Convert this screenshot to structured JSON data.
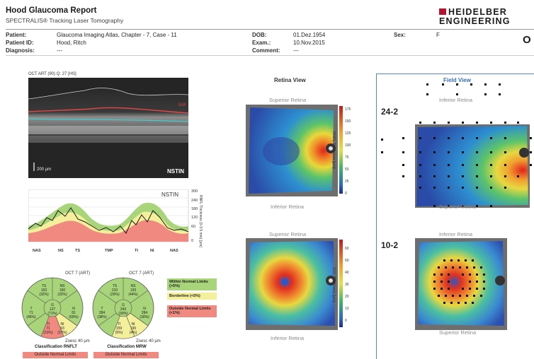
{
  "header": {
    "title": "Hood Glaucoma Report",
    "subtitle": "SPECTRALIS® Tracking Laser Tomography",
    "brand_line1": "HEIDELBER",
    "brand_line2": "ENGINEERING",
    "eye": "O"
  },
  "patient": {
    "patient_label": "Patient:",
    "patient_value": "Glaucoma Imaging Atlas, Chapter - 7, Case - 11",
    "id_label": "Patient ID:",
    "id_value": "Hood, Ritch",
    "diag_label": "Diagnosis:",
    "diag_value": "---",
    "dob_label": "DOB:",
    "dob_value": "01.Dez.1954",
    "exam_label": "Exam.:",
    "exam_value": "10.Nov.2015",
    "comment_label": "Comment:",
    "comment_value": "---",
    "sex_label": "Sex:",
    "sex_value": "F"
  },
  "oct": {
    "tag": "OCT ART (90) Q: 27 [HS]",
    "scale": "200 µm",
    "mode": "NSTIN",
    "red_mark": "ILM"
  },
  "rnfl_plot": {
    "mode": "NSTIN",
    "ylabel": "RNFL Thickness (0-3.5 mm) [µm]",
    "yticks": [
      "300",
      "240",
      "180",
      "120",
      "60",
      "0"
    ],
    "xticks": [
      "NAS",
      "NS",
      "TS",
      "TMP",
      "TI",
      "NI",
      "NAS"
    ]
  },
  "sectors": {
    "left_title": "OCT 7 (ART)",
    "right_title": "OCT 7 (ART)",
    "left": [
      {
        "id": "T",
        "value": "71",
        "pct": "(46%)"
      },
      {
        "id": "TS",
        "value": "163",
        "pct": "(32%)"
      },
      {
        "id": "NS",
        "value": "160",
        "pct": "(32%)"
      },
      {
        "id": "N",
        "value": "81",
        "pct": "(69%)"
      },
      {
        "id": "G",
        "value": "127",
        "pct": "(71%)"
      },
      {
        "id": "TI",
        "value": "71",
        "pct": "(13%)"
      },
      {
        "id": "NI",
        "value": "93",
        "pct": "(27%)"
      }
    ],
    "right": [
      {
        "id": "T",
        "value": "284",
        "pct": "(38%)"
      },
      {
        "id": "TS",
        "value": "210",
        "pct": "(29%)"
      },
      {
        "id": "NS",
        "value": "193",
        "pct": "(44%)"
      },
      {
        "id": "N",
        "value": "284",
        "pct": "(30%)"
      },
      {
        "id": "G",
        "value": "243",
        "pct": "(30%)"
      },
      {
        "id": "TI",
        "value": "159",
        "pct": "(5%)"
      },
      {
        "id": "NI",
        "value": "190",
        "pct": "(4%)"
      }
    ],
    "legend_within": "Within Normal Limits (>5%)",
    "legend_borderline": "Borderline (<5%)",
    "legend_outside": "Outside Normal Limits (<1%)",
    "classification_left": "Classification RNFLT",
    "classification_right": "Classification MRW",
    "class_result_left": "Outside Normal Limits",
    "class_result_right": "Outside Normal Limits",
    "scale_note": "Zoesc 40 µm"
  },
  "retina_view": {
    "title": "Retina View",
    "superior": "Superior Retina",
    "inferior": "Inferior Retina",
    "top_colorbar_label": "RNFL Thickness [µm]",
    "top_ticks": [
      "175",
      "150",
      "125",
      "100",
      "75",
      "50",
      "25",
      "0"
    ],
    "bottom_colorbar_label": "GCL Thickness [µm]",
    "bottom_ticks": [
      "60",
      "50",
      "40",
      "30",
      "20",
      "10",
      "0"
    ]
  },
  "field_view": {
    "title": "Field View",
    "superior": "Inferior Retina",
    "inferior": "Superior Retina",
    "top_label": "24-2",
    "bottom_label": "10-2",
    "inferior2": "Inferior Retina",
    "superior2": "Superior Retina"
  },
  "colors": {
    "brand_red": "#b5142f",
    "field_border": "#5b84c4",
    "normal_green": "#a8d47a",
    "borderline_yellow": "#f3ef9a",
    "outside_red": "#f08a80"
  }
}
